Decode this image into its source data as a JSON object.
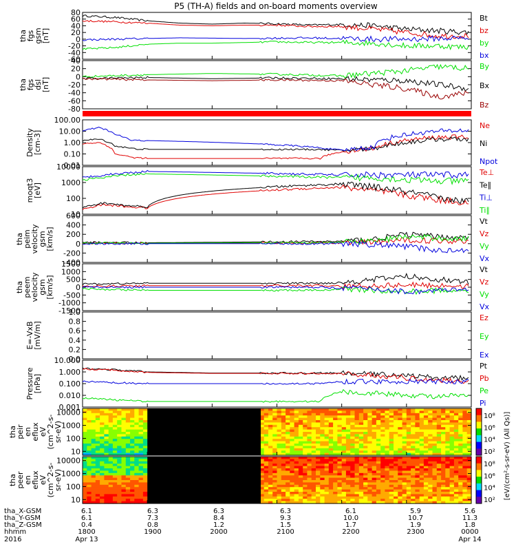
{
  "title": "P5 (TH-A) fields and on-board moments overview",
  "colors": {
    "black": "#000000",
    "red": "#e00000",
    "green": "#00e000",
    "blue": "#0000dd",
    "darkred": "#990000",
    "gap": "#000000"
  },
  "chart_data": [
    {
      "type": "line",
      "ylabel": [
        "tha",
        "fgs",
        "gsm",
        "[nT]"
      ],
      "ylim": [
        -60,
        80
      ],
      "yticks": [
        "80",
        "60",
        "40",
        "20",
        "0",
        "-20",
        "-40",
        "-60"
      ],
      "legend": [
        {
          "label": "Bt",
          "color": "black"
        },
        {
          "label": "bz",
          "color": "red"
        },
        {
          "label": "by",
          "color": "green"
        },
        {
          "label": "bx",
          "color": "blue"
        }
      ],
      "series": [
        {
          "name": "Bt",
          "color": "black",
          "x": [
            1800,
            1830,
            1900,
            1930,
            2000,
            2030,
            2100,
            2130,
            2200,
            2230,
            2300,
            2330,
            2359
          ],
          "values": [
            70,
            65,
            55,
            48,
            45,
            48,
            46,
            42,
            44,
            40,
            30,
            25,
            20
          ]
        },
        {
          "name": "bz",
          "color": "red",
          "x": [
            1800,
            1830,
            1900,
            1930,
            2000,
            2030,
            2100,
            2130,
            2200,
            2230,
            2300,
            2330,
            2359
          ],
          "values": [
            55,
            52,
            48,
            42,
            40,
            42,
            42,
            38,
            38,
            30,
            20,
            10,
            10
          ]
        },
        {
          "name": "by",
          "color": "green",
          "x": [
            1800,
            1830,
            1900,
            1930,
            2000,
            2030,
            2100,
            2130,
            2200,
            2230,
            2300,
            2330,
            2359
          ],
          "values": [
            -30,
            -25,
            -15,
            -12,
            -12,
            -10,
            -8,
            -10,
            -10,
            -12,
            -20,
            -20,
            -25
          ]
        },
        {
          "name": "bx",
          "color": "blue",
          "x": [
            1800,
            1830,
            1900,
            1930,
            2000,
            2030,
            2100,
            2130,
            2200,
            2230,
            2300,
            2330,
            2359
          ],
          "values": [
            -2,
            0,
            2,
            4,
            3,
            2,
            3,
            4,
            2,
            0,
            0,
            2,
            4
          ]
        }
      ]
    },
    {
      "type": "line",
      "ylabel": [
        "tha",
        "fgs",
        "dsl",
        "[nT]"
      ],
      "ylim": [
        -80,
        40
      ],
      "yticks": [
        "40",
        "20",
        "0",
        "-20",
        "-40",
        "-60",
        "-80"
      ],
      "legend": [
        {
          "label": "By",
          "color": "green"
        },
        {
          "label": "Bx",
          "color": "black"
        },
        {
          "label": "Bz",
          "color": "darkred"
        }
      ],
      "series": [
        {
          "name": "By",
          "color": "green",
          "x": [
            1800,
            1900,
            2000,
            2100,
            2200,
            2300,
            2330,
            2359
          ],
          "values": [
            0,
            5,
            8,
            6,
            2,
            15,
            25,
            20
          ]
        },
        {
          "name": "Bx",
          "color": "black",
          "x": [
            1800,
            1900,
            2000,
            2100,
            2200,
            2300,
            2330,
            2359
          ],
          "values": [
            -5,
            -2,
            -5,
            -3,
            -5,
            -10,
            -20,
            -30
          ]
        },
        {
          "name": "Bz",
          "color": "darkred",
          "x": [
            1800,
            1900,
            2000,
            2100,
            2200,
            2300,
            2330,
            2359
          ],
          "values": [
            -5,
            -8,
            -10,
            -8,
            -10,
            -30,
            -50,
            -40
          ]
        }
      ]
    },
    {
      "type": "line",
      "ylabel": [
        "Density",
        "[cm-3]"
      ],
      "log": true,
      "ylim": [
        0.01,
        100
      ],
      "yticks": [
        "100.00",
        "10.00",
        "1.00",
        "0.10",
        "0.01"
      ],
      "legend": [
        {
          "label": "Ne",
          "color": "red"
        },
        {
          "label": "Ni",
          "color": "black"
        },
        {
          "label": "Npot",
          "color": "blue"
        }
      ],
      "series": [
        {
          "name": "Ne",
          "color": "red",
          "x": [
            1800,
            1815,
            1830,
            1845,
            1900,
            2140,
            2200,
            2230,
            2300,
            2330,
            2359
          ],
          "values": [
            0.8,
            1.0,
            0.1,
            0.05,
            0.04,
            0.04,
            0.15,
            0.3,
            1.5,
            3.0,
            3.0
          ]
        },
        {
          "name": "Ni",
          "color": "black",
          "x": [
            1800,
            1815,
            1830,
            1845,
            1900,
            2140,
            2200,
            2230,
            2300,
            2330,
            2359
          ],
          "values": [
            1.5,
            2.0,
            0.5,
            0.3,
            0.25,
            0.25,
            0.2,
            0.3,
            1.0,
            2.0,
            2.0
          ]
        },
        {
          "name": "Npot",
          "color": "blue",
          "x": [
            1800,
            1815,
            1830,
            1845,
            1900,
            2200,
            2230,
            2300,
            2330,
            2359
          ],
          "values": [
            10,
            20,
            5,
            1.5,
            1.5,
            0.2,
            0.4,
            5,
            10,
            12
          ]
        }
      ]
    },
    {
      "type": "line",
      "ylabel": [
        "moqt3",
        "[eV]"
      ],
      "log": true,
      "ylim": [
        10,
        10000
      ],
      "yticks": [
        "10000",
        "1000",
        "100",
        "10"
      ],
      "legend": [
        {
          "label": "Te⊥",
          "color": "red"
        },
        {
          "label": "Te∥",
          "color": "black"
        },
        {
          "label": "Ti⊥",
          "color": "blue"
        },
        {
          "label": "Ti∥",
          "color": "green"
        }
      ],
      "series": [
        {
          "name": "Te⊥",
          "color": "red",
          "x": [
            1800,
            1820,
            1840,
            1900,
            2200,
            2230,
            2300,
            2330,
            2359
          ],
          "values": [
            20,
            40,
            30,
            25,
            500,
            300,
            150,
            80,
            50
          ]
        },
        {
          "name": "Te∥",
          "color": "black",
          "x": [
            1800,
            1820,
            1840,
            1900,
            2200,
            2230,
            2300,
            2330,
            2359
          ],
          "values": [
            25,
            50,
            35,
            30,
            800,
            500,
            250,
            100,
            60
          ]
        },
        {
          "name": "Ti⊥",
          "color": "blue",
          "x": [
            1800,
            1820,
            1840,
            1900,
            2200,
            2230,
            2300,
            2330,
            2359
          ],
          "values": [
            2000,
            3000,
            4000,
            5000,
            3000,
            3000,
            3000,
            3000,
            3000
          ]
        },
        {
          "name": "Ti∥",
          "color": "green",
          "x": [
            1800,
            1820,
            1840,
            1900,
            2200,
            2230,
            2300,
            2330,
            2359
          ],
          "values": [
            1500,
            2000,
            3000,
            3500,
            2000,
            2000,
            1500,
            1200,
            1200
          ]
        }
      ]
    },
    {
      "type": "line",
      "ylabel": [
        "tha",
        "peim",
        "velocity",
        "gsm",
        "[km/s]"
      ],
      "ylim": [
        -400,
        600
      ],
      "yticks": [
        "600",
        "400",
        "200",
        "0",
        "-200",
        "-400"
      ],
      "legend": [
        {
          "label": "Vt",
          "color": "black"
        },
        {
          "label": "Vz",
          "color": "red"
        },
        {
          "label": "Vy",
          "color": "green"
        },
        {
          "label": "Vx",
          "color": "blue"
        }
      ],
      "series": [
        {
          "name": "Vt",
          "color": "black",
          "x": [
            1800,
            1900,
            2200,
            2230,
            2300,
            2330,
            2359
          ],
          "values": [
            30,
            20,
            50,
            100,
            200,
            150,
            120
          ]
        },
        {
          "name": "Vz",
          "color": "red",
          "x": [
            1800,
            1900,
            2200,
            2230,
            2300,
            2330,
            2359
          ],
          "values": [
            10,
            5,
            20,
            30,
            80,
            60,
            60
          ]
        },
        {
          "name": "Vy",
          "color": "green",
          "x": [
            1800,
            1900,
            2200,
            2230,
            2300,
            2330,
            2359
          ],
          "values": [
            20,
            10,
            30,
            60,
            150,
            120,
            100
          ]
        },
        {
          "name": "Vx",
          "color": "blue",
          "x": [
            1800,
            1900,
            2200,
            2230,
            2300,
            2330,
            2359
          ],
          "values": [
            0,
            0,
            0,
            -20,
            -60,
            -150,
            -120
          ]
        }
      ]
    },
    {
      "type": "line",
      "ylabel": [
        "tha",
        "peem",
        "velocity",
        "gsm",
        "[km/s]"
      ],
      "ylim": [
        -1500,
        1500
      ],
      "yticks": [
        "1500",
        "1000",
        "500",
        "0",
        "-500",
        "-1000",
        "-1500"
      ],
      "legend": [
        {
          "label": "Vt",
          "color": "black"
        },
        {
          "label": "Vz",
          "color": "red"
        },
        {
          "label": "Vy",
          "color": "green"
        },
        {
          "label": "Vx",
          "color": "blue"
        }
      ],
      "series": [
        {
          "name": "Vt",
          "color": "black",
          "x": [
            1800,
            1900,
            2140,
            2200,
            2230,
            2300,
            2330,
            2359
          ],
          "values": [
            200,
            250,
            250,
            300,
            500,
            700,
            500,
            300
          ]
        },
        {
          "name": "Vz",
          "color": "red",
          "x": [
            1800,
            1900,
            2140,
            2200,
            2230,
            2300,
            2330,
            2359
          ],
          "values": [
            50,
            100,
            100,
            50,
            100,
            150,
            100,
            100
          ]
        },
        {
          "name": "Vy",
          "color": "green",
          "x": [
            1800,
            1900,
            2140,
            2200,
            2230,
            2300,
            2330,
            2359
          ],
          "values": [
            -100,
            -200,
            -200,
            -100,
            -200,
            -300,
            -200,
            -200
          ]
        },
        {
          "name": "Vx",
          "color": "blue",
          "x": [
            1800,
            1900,
            2140,
            2200,
            2230,
            2300,
            2330,
            2359
          ],
          "values": [
            0,
            0,
            0,
            -50,
            -100,
            -300,
            -200,
            -200
          ]
        }
      ]
    },
    {
      "type": "line",
      "ylabel": [
        "E=-VxB",
        "[mV/m]"
      ],
      "ylim": [
        0,
        1
      ],
      "yticks": [
        "1.0",
        "0.8",
        "0.6",
        "0.4",
        "0.2",
        "0.0"
      ],
      "legend": [
        {
          "label": "Ez",
          "color": "red"
        },
        {
          "label": "Ey",
          "color": "green"
        },
        {
          "label": "Ex",
          "color": "blue"
        }
      ],
      "series": []
    },
    {
      "type": "line",
      "ylabel": [
        "Pressure",
        "[nPa]"
      ],
      "log": true,
      "ylim": [
        0.001,
        10
      ],
      "yticks": [
        "10.000",
        "1.000",
        "0.100",
        "0.010",
        "0.001"
      ],
      "legend": [
        {
          "label": "Pt",
          "color": "black"
        },
        {
          "label": "Pb",
          "color": "red"
        },
        {
          "label": "Pe",
          "color": "green"
        },
        {
          "label": "Pi",
          "color": "blue"
        }
      ],
      "series": [
        {
          "name": "Pt",
          "color": "black",
          "x": [
            1800,
            1830,
            1900,
            2000,
            2100,
            2200,
            2300,
            2330,
            2359
          ],
          "values": [
            2.0,
            1.5,
            1.0,
            0.8,
            0.8,
            0.8,
            0.5,
            0.3,
            0.3
          ]
        },
        {
          "name": "Pb",
          "color": "red",
          "x": [
            1800,
            1830,
            1900,
            2000,
            2100,
            2200,
            2300,
            2330,
            2359
          ],
          "values": [
            1.8,
            1.4,
            0.9,
            0.75,
            0.75,
            0.7,
            0.3,
            0.2,
            0.15
          ]
        },
        {
          "name": "Pe",
          "color": "green",
          "x": [
            1800,
            1830,
            1900,
            2140,
            2200,
            2300,
            2330,
            2359
          ],
          "values": [
            0.006,
            0.004,
            0.003,
            0.003,
            0.02,
            0.01,
            0.008,
            0.01
          ]
        },
        {
          "name": "Pi",
          "color": "blue",
          "x": [
            1800,
            1830,
            1900,
            2140,
            2200,
            2300,
            2330,
            2359
          ],
          "values": [
            0.15,
            0.12,
            0.1,
            0.1,
            0.15,
            0.15,
            0.15,
            0.15
          ]
        }
      ]
    },
    {
      "type": "heatmap",
      "ylabel": [
        "tha",
        "peir",
        "en",
        "eflux",
        "eV",
        "(cm^2-s-",
        "sr-eV)"
      ],
      "log": true,
      "ylim": [
        5,
        20000
      ],
      "yticks": [
        "10000",
        "1000",
        "100",
        "10"
      ],
      "colorbar_ticks": [
        "10⁸",
        "10⁶",
        "10⁴",
        "10²"
      ],
      "colorbar_label": "[eV/(cm²-s-sr-eV) (All Qs)]"
    },
    {
      "type": "heatmap",
      "ylabel": [
        "tha",
        "peer",
        "en",
        "eflux",
        "eV",
        "(cm^2-s-",
        "sr-eV)"
      ],
      "log": true,
      "ylim": [
        5,
        20000
      ],
      "yticks": [
        "10000",
        "1000",
        "100",
        "10"
      ],
      "colorbar_ticks": [
        "10⁸",
        "10⁶",
        "10⁴",
        "10²"
      ]
    }
  ],
  "xaxis": {
    "rows": [
      {
        "label": "tha_X-GSM",
        "values": [
          "6.1",
          "6.3",
          "6.3",
          "6.3",
          "6.1",
          "5.9",
          "5.6"
        ]
      },
      {
        "label": "tha_Y-GSM",
        "values": [
          "6.1",
          "7.3",
          "8.4",
          "9.3",
          "10.0",
          "10.7",
          "11.3"
        ]
      },
      {
        "label": "tha_Z-GSM",
        "values": [
          "0.4",
          "0.8",
          "1.2",
          "1.5",
          "1.7",
          "1.9",
          "1.8"
        ]
      },
      {
        "label": "hhmm",
        "values": [
          "1800",
          "1900",
          "2000",
          "2100",
          "2200",
          "2300",
          "0000"
        ]
      }
    ],
    "year": "2016",
    "start_date": "Apr 13",
    "end_date": "Apr 14"
  }
}
